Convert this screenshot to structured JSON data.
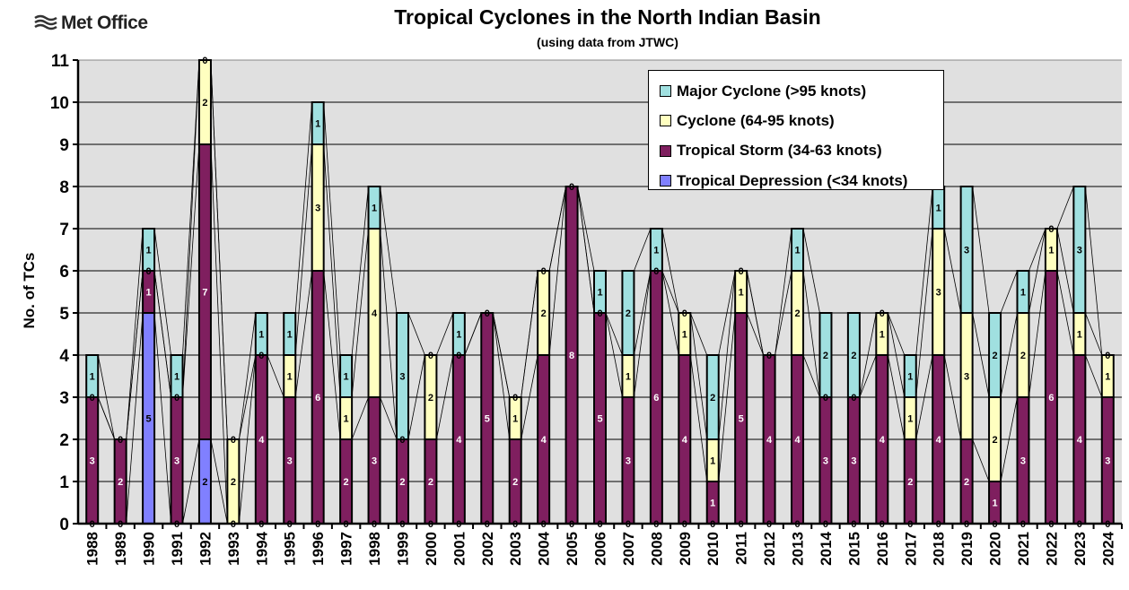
{
  "logo": "Met Office",
  "chart_data": {
    "type": "bar",
    "stacked": true,
    "title": "Tropical Cyclones in the North Indian Basin",
    "subtitle": "(using data from JTWC)",
    "xlabel": "",
    "ylabel": "No. of TCs",
    "ylim": [
      0,
      11
    ],
    "yticks": [
      0,
      1,
      2,
      3,
      4,
      5,
      6,
      7,
      8,
      9,
      10,
      11
    ],
    "grid": true,
    "legend_position": "top-right",
    "series_lines": true,
    "categories": [
      "1988",
      "1989",
      "1990",
      "1991",
      "1992",
      "1993",
      "1994",
      "1995",
      "1996",
      "1997",
      "1998",
      "1999",
      "2000",
      "2001",
      "2002",
      "2003",
      "2004",
      "2005",
      "2006",
      "2007",
      "2008",
      "2009",
      "2010",
      "2011",
      "2012",
      "2013",
      "2014",
      "2015",
      "2016",
      "2017",
      "2018",
      "2019",
      "2020",
      "2021",
      "2022",
      "2023",
      "2024"
    ],
    "series": [
      {
        "name": "Tropical Depression (<34 knots)",
        "color": "#8080FF",
        "values": [
          0,
          0,
          5,
          0,
          2,
          0,
          0,
          0,
          0,
          0,
          0,
          0,
          0,
          0,
          0,
          0,
          0,
          0,
          0,
          0,
          0,
          0,
          0,
          0,
          0,
          0,
          0,
          0,
          0,
          0,
          0,
          0,
          0,
          0,
          0,
          0,
          0
        ]
      },
      {
        "name": "Tropical Storm (34-63 knots)",
        "color": "#7F1F5F",
        "values": [
          3,
          2,
          1,
          3,
          7,
          0,
          4,
          3,
          6,
          2,
          3,
          2,
          2,
          4,
          5,
          2,
          4,
          8,
          5,
          3,
          6,
          4,
          1,
          5,
          4,
          4,
          3,
          3,
          4,
          2,
          4,
          2,
          1,
          3,
          6,
          4,
          3
        ]
      },
      {
        "name": "Cyclone (64-95 knots)",
        "color": "#FFFFC0",
        "values": [
          0,
          0,
          0,
          0,
          2,
          2,
          0,
          1,
          3,
          1,
          4,
          0,
          2,
          0,
          0,
          1,
          2,
          0,
          0,
          1,
          0,
          1,
          1,
          1,
          0,
          2,
          0,
          0,
          1,
          1,
          3,
          3,
          2,
          2,
          1,
          1,
          1
        ]
      },
      {
        "name": "Major Cyclone (>95 knots)",
        "color": "#A0E0E0",
        "values": [
          1,
          0,
          1,
          1,
          0,
          0,
          1,
          1,
          1,
          1,
          1,
          3,
          0,
          1,
          0,
          0,
          0,
          0,
          1,
          2,
          1,
          0,
          2,
          0,
          0,
          1,
          2,
          2,
          0,
          1,
          1,
          3,
          2,
          1,
          0,
          3,
          0
        ]
      }
    ],
    "plot_background": "#E0E0E0"
  }
}
